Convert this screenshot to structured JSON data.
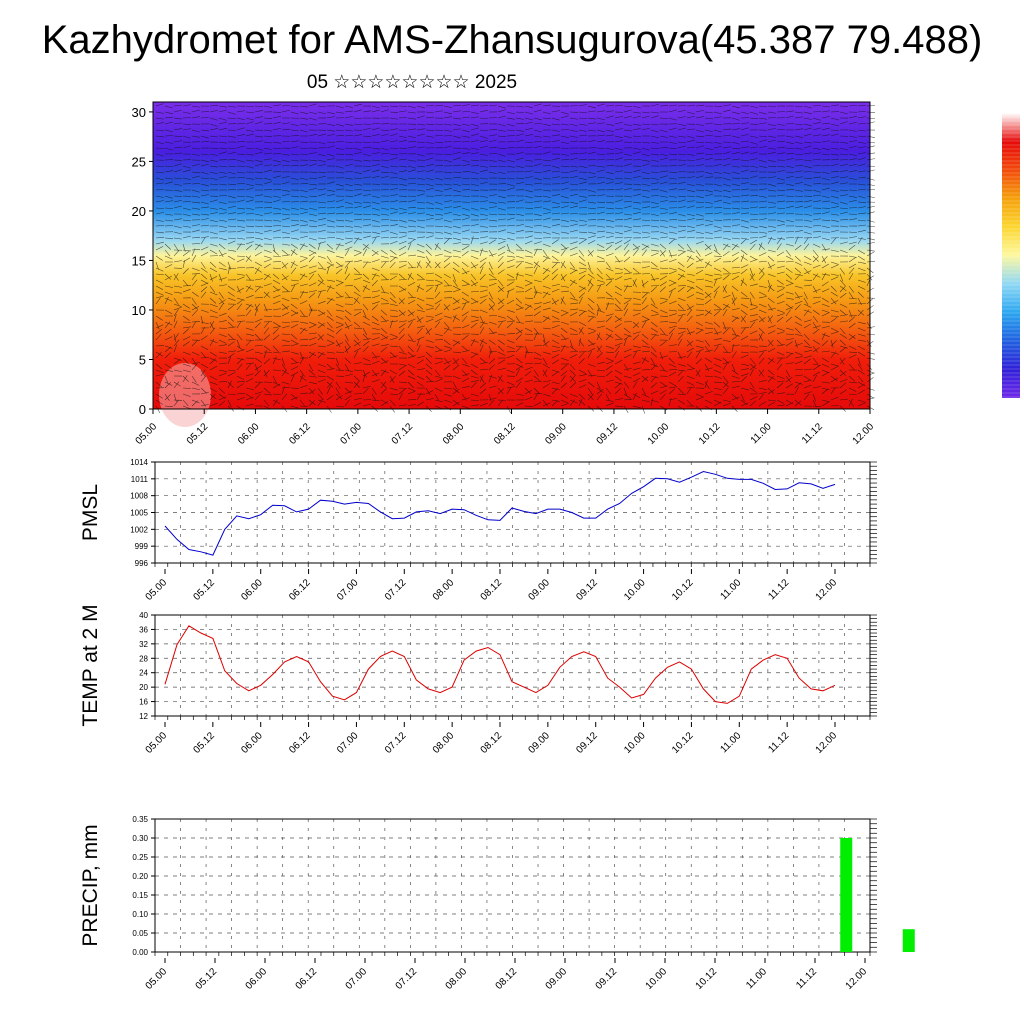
{
  "title": "Kazhydromet for AMS-Zhansugurova(45.387 79.488)",
  "subtitle": "05 ☆☆☆☆☆☆☆☆ 2025",
  "colorbar": {
    "colors": [
      "#ffffff",
      "#e60a0a",
      "#f24a0a",
      "#f5a00a",
      "#fcd630",
      "#fdf8a0",
      "#8fd8f5",
      "#2aa6f0",
      "#2060e0",
      "#3020d8",
      "#7028e8"
    ]
  },
  "chart_data": [
    {
      "type": "heatmap",
      "title": "",
      "xlabel": "",
      "ylabel": "",
      "x_ticks": [
        "05.00",
        "05.12",
        "06.00",
        "06.12",
        "07.00",
        "07.12",
        "08.00",
        "08.12",
        "09.00",
        "09.12",
        "10.00",
        "10.12",
        "11.00",
        "11.12",
        "12.00"
      ],
      "y_ticks": [
        "0",
        "5",
        "10",
        "15",
        "20",
        "25",
        "30"
      ],
      "ylim": [
        0,
        31
      ],
      "bands": [
        {
          "level": 0,
          "color": "#e60a0a"
        },
        {
          "level": 5,
          "color": "#f01e0a"
        },
        {
          "level": 8,
          "color": "#f46010"
        },
        {
          "level": 11,
          "color": "#f59a14"
        },
        {
          "level": 13.5,
          "color": "#f8c428"
        },
        {
          "level": 15.5,
          "color": "#fdf49c"
        },
        {
          "level": 17,
          "color": "#9ad8f2"
        },
        {
          "level": 20,
          "color": "#2a8ee8"
        },
        {
          "level": 23,
          "color": "#2850d8"
        },
        {
          "level": 26,
          "color": "#4a1ee0"
        },
        {
          "level": 31,
          "color": "#7a2eea"
        }
      ]
    },
    {
      "type": "line",
      "title": "",
      "xlabel": "",
      "ylabel": "PMSL",
      "x_ticks": [
        "05.00",
        "05.12",
        "06.00",
        "06.12",
        "07.00",
        "07.12",
        "08.00",
        "08.12",
        "09.00",
        "09.12",
        "10.00",
        "10.12",
        "11.00",
        "11.12",
        "12.00"
      ],
      "y_ticks": [
        "996",
        "999",
        "1002",
        "1005",
        "1008",
        "1011",
        "1014"
      ],
      "ylim": [
        996,
        1014
      ],
      "series": [
        {
          "color": "#0000cc",
          "values": [
            1002.6,
            1000.2,
            998.4,
            998.0,
            997.4,
            1002.0,
            1004.4,
            1003.9,
            1004.6,
            1006.3,
            1006.2,
            1005.1,
            1005.6,
            1007.2,
            1007.0,
            1006.5,
            1006.8,
            1006.6,
            1005.1,
            1003.9,
            1004.0,
            1005.1,
            1005.3,
            1004.8,
            1005.6,
            1005.5,
            1004.5,
            1003.7,
            1003.6,
            1005.8,
            1005.2,
            1004.8,
            1005.6,
            1005.6,
            1005.0,
            1004.0,
            1004.0,
            1005.6,
            1006.6,
            1008.4,
            1009.6,
            1011.1,
            1011.0,
            1010.4,
            1011.3,
            1012.3,
            1011.8,
            1011.1,
            1010.9,
            1010.9,
            1010.2,
            1009.1,
            1009.2,
            1010.3,
            1010.1,
            1009.3,
            1010.0
          ]
        }
      ]
    },
    {
      "type": "line",
      "title": "",
      "xlabel": "",
      "ylabel": "TEMP at 2 M",
      "x_ticks": [
        "05.00",
        "05.12",
        "06.00",
        "06.12",
        "07.00",
        "07.12",
        "08.00",
        "08.12",
        "09.00",
        "09.12",
        "10.00",
        "10.12",
        "11.00",
        "11.12",
        "12.00"
      ],
      "y_ticks": [
        "12",
        "16",
        "20",
        "24",
        "28",
        "32",
        "36",
        "40"
      ],
      "ylim": [
        12,
        40
      ],
      "series": [
        {
          "color": "#dd0000",
          "values": [
            20.8,
            31.8,
            37.0,
            35.0,
            33.5,
            24.5,
            21.0,
            19.0,
            20.5,
            23.5,
            27.0,
            28.5,
            27.0,
            21.5,
            17.5,
            16.5,
            18.5,
            25.0,
            28.5,
            30.0,
            28.5,
            22.0,
            19.5,
            18.5,
            20.0,
            27.5,
            30.0,
            31.0,
            29.0,
            21.5,
            20.0,
            18.5,
            20.5,
            25.5,
            28.5,
            29.8,
            28.5,
            22.5,
            20.0,
            17.0,
            18.0,
            22.5,
            25.5,
            27.0,
            25.0,
            19.5,
            16.0,
            15.5,
            17.5,
            25.0,
            27.5,
            29.0,
            28.0,
            22.5,
            19.5,
            19.0,
            20.5
          ]
        }
      ]
    },
    {
      "type": "bar",
      "title": "",
      "xlabel": "",
      "ylabel": "PRECIP, mm",
      "x_ticks": [
        "05.00",
        "05.12",
        "06.00",
        "06.12",
        "07.00",
        "07.12",
        "08.00",
        "08.12",
        "09.00",
        "09.12",
        "10.00",
        "10.12",
        "11.00",
        "11.12",
        "12.00"
      ],
      "y_ticks": [
        "0.00",
        "0.05",
        "0.10",
        "0.15",
        "0.20",
        "0.25",
        "0.30",
        "0.35"
      ],
      "ylim": [
        0,
        0.35
      ],
      "bar_color": "#00ee00",
      "bars": [
        {
          "x": 54.5,
          "value": 0.3
        },
        {
          "x": 59.5,
          "value": 0.06
        }
      ]
    }
  ]
}
